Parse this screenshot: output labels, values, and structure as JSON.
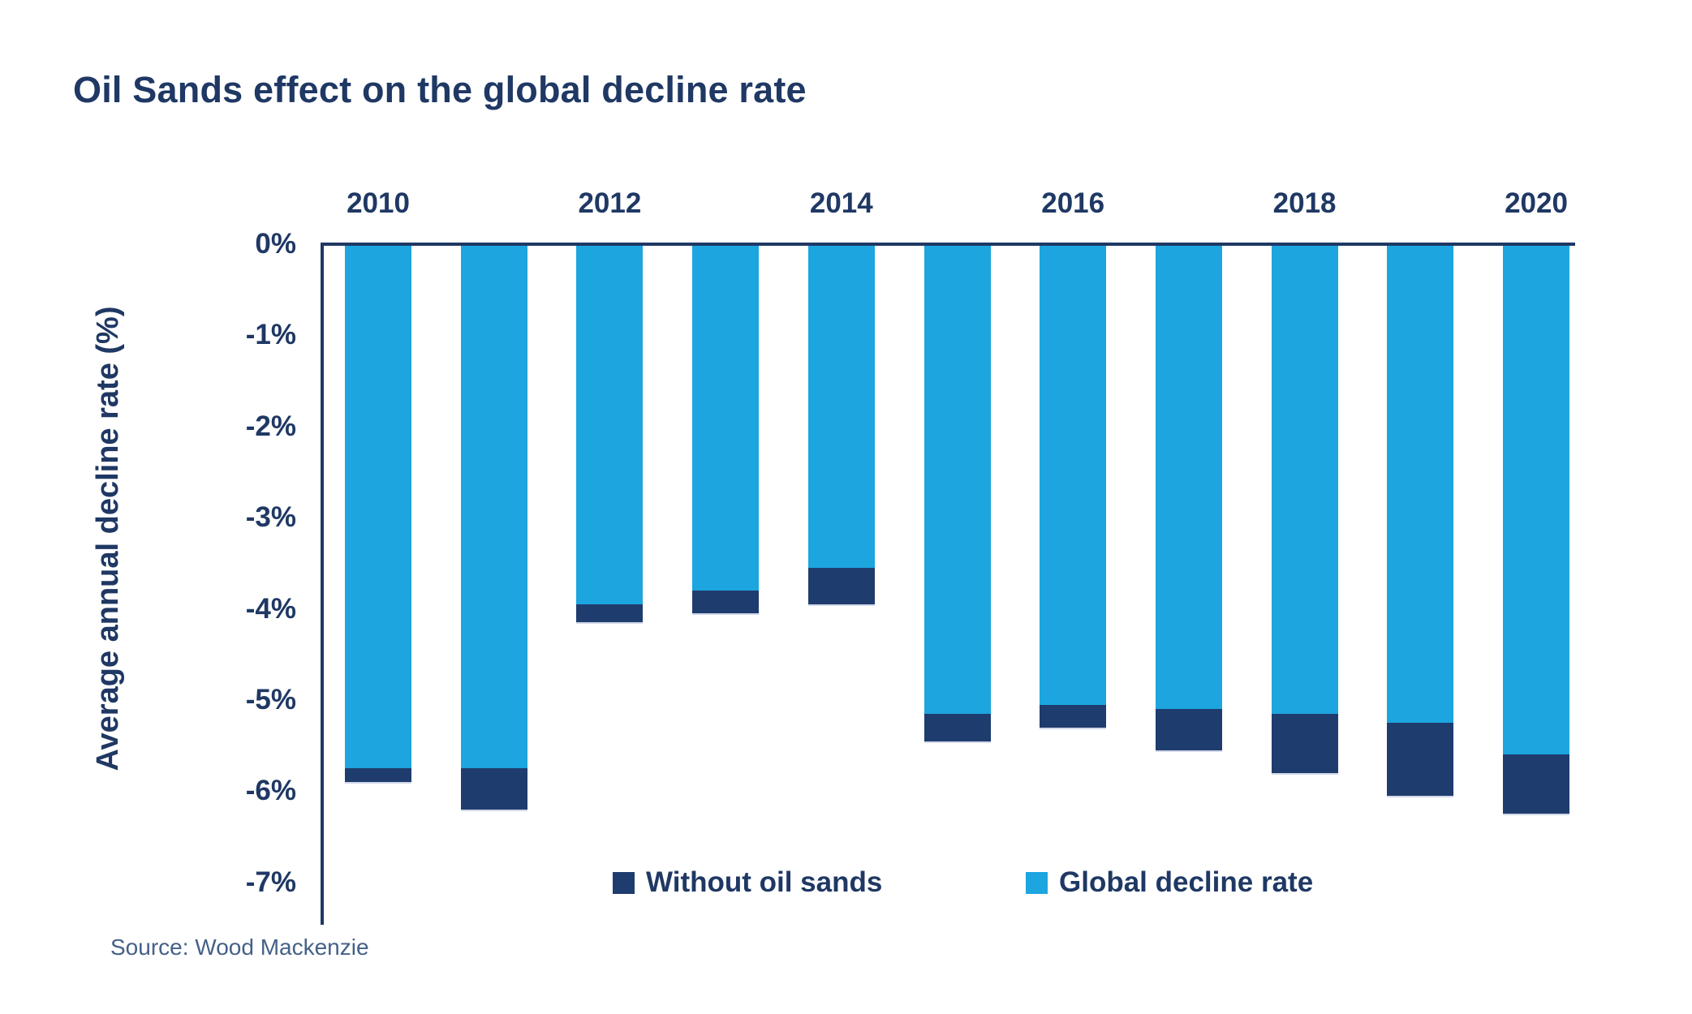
{
  "title": "Oil Sands effect on the global decline rate",
  "source": "Source: Wood Mackenzie",
  "colors": {
    "title_text": "#1F3864",
    "axis_text": "#1F3864",
    "axis_line": "#1F3864",
    "bar_navy": "#1F3C6E",
    "bar_blue": "#1CA5DF",
    "source_text": "#456088"
  },
  "chart_data": {
    "type": "bar",
    "stacked": true,
    "orientation": "vertical-negative",
    "title": "Oil Sands effect on the global decline rate",
    "xlabel": "",
    "ylabel": "Average annual decline rate (%)",
    "ylim": [
      0,
      -7
    ],
    "grid": false,
    "categories": [
      "2010",
      "2011",
      "2012",
      "2013",
      "2014",
      "2015",
      "2016",
      "2017",
      "2018",
      "2019",
      "2020"
    ],
    "x_tick_labels": [
      "2010",
      "2012",
      "2014",
      "2016",
      "2018",
      "2020"
    ],
    "y_tick_labels": [
      "0%",
      "-1%",
      "-2%",
      "-3%",
      "-4%",
      "-5%",
      "-6%",
      "-7%"
    ],
    "series": [
      {
        "name": "Global decline rate",
        "color": "#1CA5DF",
        "values": [
          -5.75,
          -5.75,
          -3.95,
          -3.8,
          -3.55,
          -5.15,
          -5.05,
          -5.1,
          -5.15,
          -5.25,
          -5.6
        ]
      },
      {
        "name": "Without oil sands",
        "color": "#1F3C6E",
        "values": [
          -5.9,
          -6.2,
          -4.15,
          -4.05,
          -3.95,
          -5.45,
          -5.3,
          -5.55,
          -5.8,
          -6.05,
          -6.25
        ]
      }
    ],
    "legend": [
      {
        "label": "Without oil sands",
        "color": "#1F3C6E"
      },
      {
        "label": "Global decline rate",
        "color": "#1CA5DF"
      }
    ],
    "legend_position": "bottom"
  }
}
